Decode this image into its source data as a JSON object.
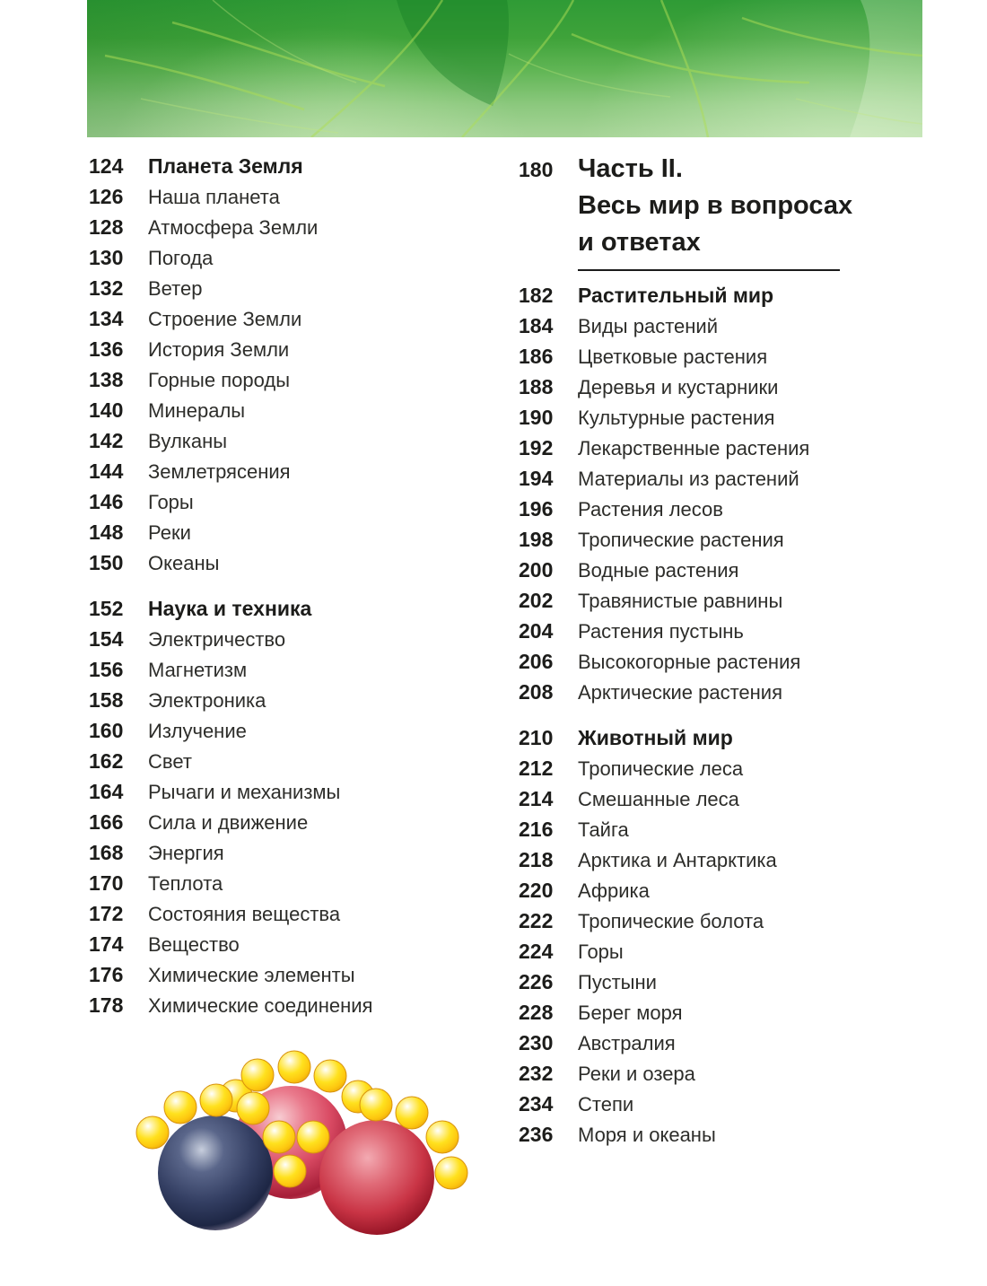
{
  "banner": {
    "description": "photographic strip of green leaves with light veins",
    "colors": {
      "top": "#2f9b36",
      "bottom": "#a6d497",
      "vein": "#aedd55"
    }
  },
  "toc": {
    "left_column": {
      "groups": [
        {
          "header": {
            "page": "124",
            "title": "Планета Земля"
          },
          "items": [
            {
              "page": "126",
              "title": "Наша планета"
            },
            {
              "page": "128",
              "title": "Атмосфера Земли"
            },
            {
              "page": "130",
              "title": "Погода"
            },
            {
              "page": "132",
              "title": "Ветер"
            },
            {
              "page": "134",
              "title": "Строение Земли"
            },
            {
              "page": "136",
              "title": "История Земли"
            },
            {
              "page": "138",
              "title": "Горные породы"
            },
            {
              "page": "140",
              "title": "Минералы"
            },
            {
              "page": "142",
              "title": "Вулканы"
            },
            {
              "page": "144",
              "title": "Землетрясения"
            },
            {
              "page": "146",
              "title": "Горы"
            },
            {
              "page": "148",
              "title": "Реки"
            },
            {
              "page": "150",
              "title": "Океаны"
            }
          ]
        },
        {
          "header": {
            "page": "152",
            "title": "Наука и техника"
          },
          "items": [
            {
              "page": "154",
              "title": "Электричество"
            },
            {
              "page": "156",
              "title": "Магнетизм"
            },
            {
              "page": "158",
              "title": "Электроника"
            },
            {
              "page": "160",
              "title": "Излучение"
            },
            {
              "page": "162",
              "title": "Свет"
            },
            {
              "page": "164",
              "title": "Рычаги и механизмы"
            },
            {
              "page": "166",
              "title": "Сила и движение"
            },
            {
              "page": "168",
              "title": "Энергия"
            },
            {
              "page": "170",
              "title": "Теплота"
            },
            {
              "page": "172",
              "title": "Состояния вещества"
            },
            {
              "page": "174",
              "title": "Вещество"
            },
            {
              "page": "176",
              "title": "Химические элементы"
            },
            {
              "page": "178",
              "title": "Химические соединения"
            }
          ]
        }
      ]
    },
    "right_column": {
      "part_header": {
        "page": "180",
        "title_lines": [
          "Часть II.",
          "Весь мир в вопросах",
          "и ответах"
        ]
      },
      "groups": [
        {
          "header": {
            "page": "182",
            "title": "Растительный мир"
          },
          "items": [
            {
              "page": "184",
              "title": "Виды растений"
            },
            {
              "page": "186",
              "title": "Цветковые растения"
            },
            {
              "page": "188",
              "title": "Деревья и кустарники"
            },
            {
              "page": "190",
              "title": "Культурные растения"
            },
            {
              "page": "192",
              "title": "Лекарственные растения"
            },
            {
              "page": "194",
              "title": "Материалы из растений"
            },
            {
              "page": "196",
              "title": "Растения лесов"
            },
            {
              "page": "198",
              "title": "Тропические растения"
            },
            {
              "page": "200",
              "title": "Водные растения"
            },
            {
              "page": "202",
              "title": "Травянистые равнины"
            },
            {
              "page": "204",
              "title": "Растения пустынь"
            },
            {
              "page": "206",
              "title": "Высокогорные растения"
            },
            {
              "page": "208",
              "title": "Арктические растения"
            }
          ]
        },
        {
          "header": {
            "page": "210",
            "title": "Животный мир"
          },
          "items": [
            {
              "page": "212",
              "title": "Тропические леса"
            },
            {
              "page": "214",
              "title": "Смешанные леса"
            },
            {
              "page": "216",
              "title": "Тайга"
            },
            {
              "page": "218",
              "title": "Арктика и Антарктика"
            },
            {
              "page": "220",
              "title": "Африка"
            },
            {
              "page": "222",
              "title": "Тропические болота"
            },
            {
              "page": "224",
              "title": "Горы"
            },
            {
              "page": "226",
              "title": "Пустыни"
            },
            {
              "page": "228",
              "title": "Берег моря"
            },
            {
              "page": "230",
              "title": "Австралия"
            },
            {
              "page": "232",
              "title": "Реки и озера"
            },
            {
              "page": "234",
              "title": "Степи"
            },
            {
              "page": "236",
              "title": "Моря и океаны"
            }
          ]
        }
      ]
    }
  },
  "illustration": {
    "description": "three large atom spheres (dark navy and two red) surrounded by small yellow electron spheres",
    "colors": {
      "navy_highlight": "#c7cedd",
      "navy_mid": "#5a668a",
      "navy_body": "#343f63",
      "navy_shadow": "#1d2644",
      "navy_rim": "#837b92",
      "pink_highlight": "#f7ccd2",
      "pink_light": "#ea7b8d",
      "pink_body": "#d94a63",
      "pink_shadow": "#a61e38",
      "pink_rim": "#c84b60",
      "red_highlight": "#f3aab2",
      "red_light": "#e06a77",
      "red_body": "#c93445",
      "red_shadow": "#8c0f20",
      "red_rim": "#d6626d",
      "yellow_highlight": "#ffffff",
      "yellow_light": "#fff29e",
      "yellow_body": "#ffe11e",
      "yellow_deep": "#fdc70f",
      "yellow_rim": "#e8a30c"
    }
  }
}
